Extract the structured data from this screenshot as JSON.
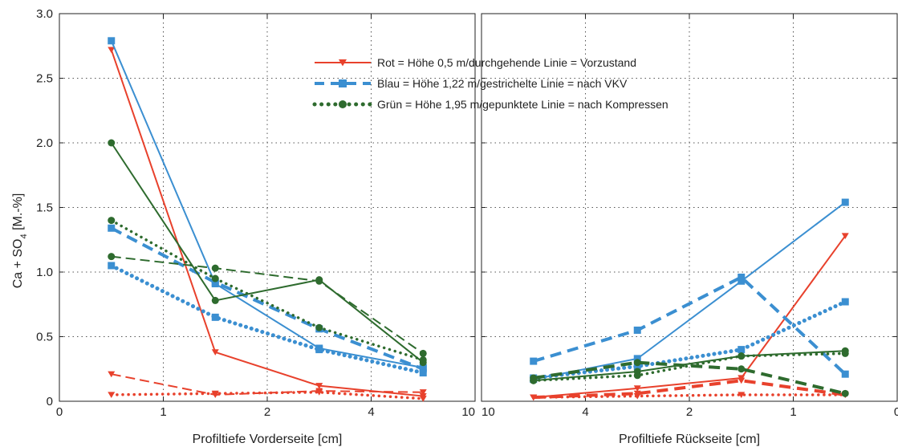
{
  "chart_data": {
    "type": "line",
    "ylabel_parts": {
      "pre": "Ca + SO",
      "sub": "4",
      "post": " [M.-%]"
    },
    "ylim": [
      0,
      3.0
    ],
    "yticks": [
      "0",
      "0.5",
      "1.0",
      "1.5",
      "2.0",
      "2.5",
      "3.0"
    ],
    "grid": true,
    "colors": {
      "red": "#e8412c",
      "blue": "#3b8fd1",
      "green": "#2e6b2e"
    },
    "legend": {
      "placement": "top-center",
      "entries": [
        {
          "label": "Rot = Höhe 0,5 m/durchgehende Linie = Vorzustand",
          "color": "red",
          "marker": "triangle",
          "dash": "solid"
        },
        {
          "label": "Blau = Höhe 1,22 m/gestrichelte Linie = nach VKV",
          "color": "blue",
          "marker": "square",
          "dash": "dashed"
        },
        {
          "label": "Grün = Höhe 1,95 m/gepunktete Linie = nach Kompressen",
          "color": "green",
          "marker": "circle",
          "dash": "dotted"
        }
      ]
    },
    "panels": [
      {
        "xlabel": "Profiltiefe Vorderseite [cm]",
        "xticks": [
          "0",
          "1",
          "2",
          "4",
          "10"
        ],
        "x": [
          0.5,
          1.5,
          2.5,
          3.5
        ],
        "series": [
          {
            "color": "red",
            "dash": "solid",
            "marker": "triangle",
            "values": [
              2.72,
              0.38,
              0.12,
              0.04
            ]
          },
          {
            "color": "red",
            "dash": "dashed",
            "marker": "triangle",
            "values": [
              0.21,
              0.05,
              0.08,
              0.07
            ]
          },
          {
            "color": "red",
            "dash": "dotted",
            "marker": "triangle",
            "values": [
              0.05,
              0.06,
              0.07,
              0.02
            ]
          },
          {
            "color": "blue",
            "dash": "solid",
            "marker": "square",
            "values": [
              2.79,
              0.91,
              0.41,
              0.26
            ]
          },
          {
            "color": "blue",
            "dash": "dashed",
            "marker": "square",
            "values": [
              1.34,
              0.92,
              0.56,
              0.25
            ]
          },
          {
            "color": "blue",
            "dash": "dotted",
            "marker": "square",
            "values": [
              1.05,
              0.65,
              0.4,
              0.22
            ]
          },
          {
            "color": "green",
            "dash": "solid",
            "marker": "circle",
            "values": [
              2.0,
              0.78,
              0.94,
              0.3
            ]
          },
          {
            "color": "green",
            "dash": "dashed",
            "marker": "circle",
            "values": [
              1.12,
              1.03,
              0.93,
              0.37
            ]
          },
          {
            "color": "green",
            "dash": "dotted",
            "marker": "circle",
            "values": [
              1.4,
              0.95,
              0.57,
              0.32
            ]
          }
        ]
      },
      {
        "xlabel": "Profiltiefe Rückseite [cm]",
        "xticks": [
          "10",
          "4",
          "2",
          "1",
          "0"
        ],
        "x": [
          0.5,
          1.5,
          2.5,
          3.5
        ],
        "series": [
          {
            "color": "red",
            "dash": "solid",
            "marker": "triangle",
            "values": [
              0.03,
              0.1,
              0.18,
              1.28
            ]
          },
          {
            "color": "red",
            "dash": "dashed",
            "marker": "triangle",
            "values": [
              0.03,
              0.06,
              0.16,
              0.05
            ]
          },
          {
            "color": "red",
            "dash": "dotted",
            "marker": "triangle",
            "values": [
              0.03,
              0.04,
              0.05,
              0.05
            ]
          },
          {
            "color": "blue",
            "dash": "solid",
            "marker": "square",
            "values": [
              0.17,
              0.33,
              0.93,
              1.54
            ]
          },
          {
            "color": "blue",
            "dash": "dashed",
            "marker": "square",
            "values": [
              0.31,
              0.55,
              0.96,
              0.21
            ]
          },
          {
            "color": "blue",
            "dash": "dotted",
            "marker": "square",
            "values": [
              0.18,
              0.27,
              0.4,
              0.77
            ]
          },
          {
            "color": "green",
            "dash": "solid",
            "marker": "circle",
            "values": [
              0.16,
              0.23,
              0.35,
              0.39
            ]
          },
          {
            "color": "green",
            "dash": "dashed",
            "marker": "circle",
            "values": [
              0.18,
              0.3,
              0.25,
              0.06
            ]
          },
          {
            "color": "green",
            "dash": "dotted",
            "marker": "circle",
            "values": [
              0.16,
              0.2,
              0.35,
              0.37
            ]
          }
        ]
      }
    ]
  }
}
